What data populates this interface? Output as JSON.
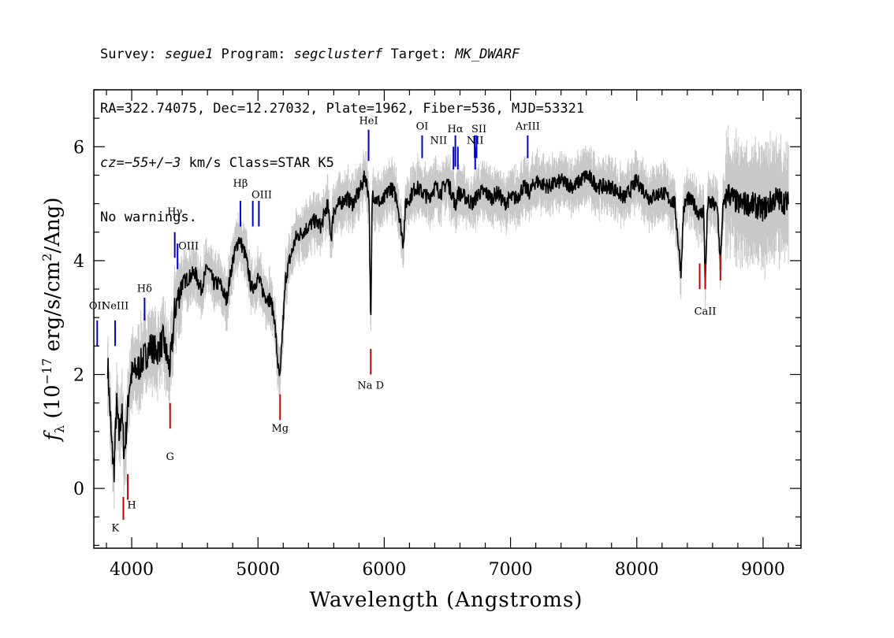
{
  "header": {
    "line1": {
      "survey_label": "Survey: ",
      "survey": "segue1",
      "program_label": " Program: ",
      "program": "segclusterf",
      "target_label": " Target: ",
      "target": "MK_DWARF"
    },
    "line2": "RA=322.74075, Dec=12.27032, Plate=1962, Fiber=536, MJD=53321",
    "line3": {
      "cz_label": "cz",
      "cz_value": "=−55+/−3",
      "rest": " km/s Class=STAR K5"
    },
    "line4": "No warnings."
  },
  "chart_data": {
    "type": "line",
    "title": "",
    "xlabel": "Wavelength (Angstroms)",
    "ylabel_parts": {
      "f": "f",
      "sub": "λ",
      "pre": " (10",
      "exp": "−17",
      "mid": " erg/s/cm",
      "exp2": "2",
      "post": "/Ang)"
    },
    "xlim": [
      3700,
      9300
    ],
    "ylim": [
      -1.05,
      7.0
    ],
    "x_ticks": [
      4000,
      5000,
      6000,
      7000,
      8000,
      9000
    ],
    "x_tick_labels": [
      "4000",
      "5000",
      "6000",
      "7000",
      "8000",
      "9000"
    ],
    "y_ticks": [
      0,
      2,
      4,
      6
    ],
    "y_tick_labels": [
      "0",
      "2",
      "4",
      "6"
    ],
    "series": [
      {
        "role": "flux",
        "color": "#000000",
        "x": [
          3810,
          3840,
          3860,
          3880,
          3900,
          3920,
          3940,
          3960,
          3980,
          4000,
          4050,
          4100,
          4150,
          4200,
          4250,
          4300,
          4320,
          4340,
          4360,
          4400,
          4450,
          4500,
          4550,
          4600,
          4650,
          4700,
          4750,
          4800,
          4850,
          4900,
          4950,
          5000,
          5050,
          5100,
          5130,
          5160,
          5175,
          5190,
          5220,
          5250,
          5300,
          5350,
          5400,
          5450,
          5500,
          5550,
          5580,
          5600,
          5650,
          5700,
          5750,
          5800,
          5850,
          5880,
          5893,
          5905,
          5930,
          5980,
          6050,
          6100,
          6150,
          6170,
          6200,
          6250,
          6300,
          6350,
          6400,
          6450,
          6500,
          6550,
          6563,
          6580,
          6650,
          6700,
          6750,
          6800,
          6850,
          6900,
          6950,
          7000,
          7050,
          7100,
          7150,
          7200,
          7300,
          7400,
          7500,
          7600,
          7700,
          7800,
          7900,
          8000,
          8100,
          8200,
          8300,
          8350,
          8370,
          8400,
          8450,
          8500,
          8530,
          8542,
          8560,
          8600,
          8640,
          8662,
          8680,
          8720,
          8800,
          8900,
          9000,
          9100,
          9200
        ],
        "y": [
          2.2,
          0.8,
          0.3,
          1.5,
          0.9,
          1.4,
          0.6,
          1.1,
          1.8,
          2.0,
          2.1,
          2.3,
          2.5,
          2.4,
          2.6,
          2.1,
          2.5,
          3.1,
          3.3,
          3.6,
          3.7,
          3.8,
          3.5,
          3.9,
          3.6,
          3.6,
          3.3,
          4.0,
          4.4,
          4.1,
          3.5,
          3.7,
          3.4,
          3.3,
          3.0,
          2.1,
          1.9,
          2.6,
          3.7,
          4.0,
          4.4,
          4.5,
          4.6,
          4.7,
          4.6,
          5.0,
          4.4,
          4.9,
          5.0,
          5.1,
          5.0,
          5.2,
          5.5,
          5.1,
          2.7,
          5.2,
          5.1,
          5.0,
          5.3,
          5.1,
          4.3,
          5.0,
          5.1,
          5.3,
          5.2,
          5.1,
          5.3,
          5.2,
          5.4,
          5.1,
          4.9,
          5.2,
          5.1,
          5.0,
          5.2,
          5.2,
          5.1,
          5.2,
          5.0,
          5.1,
          5.1,
          5.3,
          5.2,
          5.4,
          5.3,
          5.4,
          5.3,
          5.5,
          5.3,
          5.3,
          5.1,
          5.4,
          5.1,
          5.2,
          5.0,
          3.8,
          4.9,
          5.1,
          5.0,
          4.8,
          4.9,
          3.5,
          5.0,
          5.0,
          4.9,
          3.9,
          4.9,
          5.2,
          5.0,
          5.0,
          4.9,
          5.1,
          5.0
        ]
      },
      {
        "role": "error",
        "color": "#c8c8c8",
        "ylim_band": 0.35
      }
    ],
    "emission_lines": [
      {
        "label": "OII",
        "x": 3727,
        "y0": 2.5,
        "y1": 2.95,
        "color": "#0000cc",
        "tx": 3727,
        "ty": 3.15
      },
      {
        "label": "NeIII",
        "x": 3869,
        "y0": 2.5,
        "y1": 2.95,
        "color": "#0000cc",
        "tx": 3869,
        "ty": 3.15
      },
      {
        "label": "Hδ",
        "x": 4102,
        "y0": 2.95,
        "y1": 3.35,
        "color": "#0000cc",
        "tx": 4102,
        "ty": 3.45
      },
      {
        "label": "Hγ",
        "x": 4341,
        "y0": 4.05,
        "y1": 4.5,
        "color": "#0000cc",
        "tx": 4341,
        "ty": 4.8
      },
      {
        "label": "OIII",
        "x": 4363,
        "y0": 3.85,
        "y1": 4.3,
        "color": "#0000cc",
        "tx": 4450,
        "ty": 4.2
      },
      {
        "label": "Hβ",
        "x": 4861,
        "y0": 4.6,
        "y1": 5.05,
        "color": "#0000cc",
        "tx": 4861,
        "ty": 5.3
      },
      {
        "label": "OIII",
        "x": 4959,
        "y0": 4.6,
        "y1": 5.05,
        "color": "#0000cc",
        "tx": 5030,
        "ty": 5.1
      },
      {
        "label": "OIII",
        "x": 5007,
        "y0": 4.6,
        "y1": 5.05,
        "color": "#0000cc",
        "tx": "",
        "ty": ""
      },
      {
        "label": "HeI",
        "x": 5876,
        "y0": 5.75,
        "y1": 6.3,
        "color": "#0000cc",
        "tx": 5876,
        "ty": 6.4
      },
      {
        "label": "OI",
        "x": 6300,
        "y0": 5.8,
        "y1": 6.2,
        "color": "#0000cc",
        "tx": 6300,
        "ty": 6.3
      },
      {
        "label": "NII",
        "x": 6548,
        "y0": 5.6,
        "y1": 6.0,
        "color": "#0000cc",
        "tx": 6430,
        "ty": 6.05
      },
      {
        "label": "Hα",
        "x": 6563,
        "y0": 5.65,
        "y1": 6.2,
        "color": "#0000cc",
        "tx": 6563,
        "ty": 6.25
      },
      {
        "label": "NII",
        "x": 6583,
        "y0": 5.6,
        "y1": 6.0,
        "color": "#0000cc",
        "tx": "",
        "ty": ""
      },
      {
        "label": "SII",
        "x": 6716,
        "y0": 5.8,
        "y1": 6.2,
        "color": "#0000cc",
        "tx": 6750,
        "ty": 6.25
      },
      {
        "label": "SII",
        "x": 6731,
        "y0": 5.8,
        "y1": 6.2,
        "color": "#0000cc",
        "tx": "",
        "ty": ""
      },
      {
        "label": "NII",
        "x": 6720,
        "y0": 5.6,
        "y1": 6.0,
        "color": "#0000cc",
        "tx": 6720,
        "ty": 6.05
      },
      {
        "label": "ArIII",
        "x": 7136,
        "y0": 5.8,
        "y1": 6.2,
        "color": "#0000cc",
        "tx": 7136,
        "ty": 6.3
      }
    ],
    "absorption_lines": [
      {
        "label": "K",
        "x": 3934,
        "y0": -0.55,
        "y1": -0.15,
        "color": "#cc0000",
        "tx": 3870,
        "ty": -0.75
      },
      {
        "label": "H",
        "x": 3969,
        "y0": -0.2,
        "y1": 0.25,
        "color": "#cc0000",
        "tx": 4000,
        "ty": -0.35
      },
      {
        "label": "G",
        "x": 4304,
        "y0": 1.05,
        "y1": 1.5,
        "color": "#cc0000",
        "tx": 4304,
        "ty": 0.5
      },
      {
        "label": "Mg",
        "x": 5175,
        "y0": 1.2,
        "y1": 1.65,
        "color": "#cc0000",
        "tx": 5175,
        "ty": 1.0
      },
      {
        "label": "Na D",
        "x": 5893,
        "y0": 2.0,
        "y1": 2.45,
        "color": "#cc0000",
        "tx": 5893,
        "ty": 1.75
      },
      {
        "label": "CaII",
        "x": 8498,
        "y0": 3.5,
        "y1": 3.95,
        "color": "#cc0000",
        "tx": 8542,
        "ty": 3.05
      },
      {
        "label": "CaII",
        "x": 8542,
        "y0": 3.5,
        "y1": 3.95,
        "color": "#cc0000",
        "tx": "",
        "ty": ""
      },
      {
        "label": "CaII",
        "x": 8662,
        "y0": 3.65,
        "y1": 4.1,
        "color": "#cc0000",
        "tx": "",
        "ty": ""
      }
    ]
  }
}
